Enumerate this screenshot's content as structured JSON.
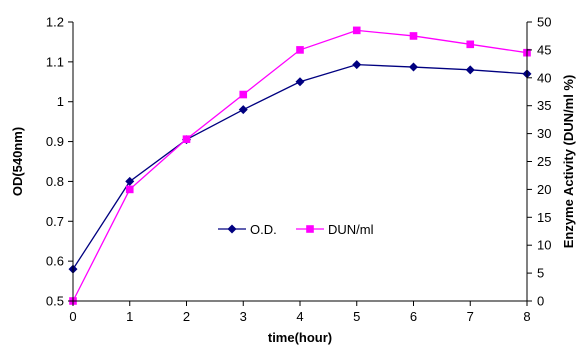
{
  "chart_data": {
    "type": "line",
    "title": "",
    "xlabel": "time(hour)",
    "ylabel_left": "OD(540nm)",
    "ylabel_right": "Enzyme Activity (DUN/ml %)",
    "x": [
      0,
      1,
      2,
      3,
      4,
      5,
      6,
      7,
      8
    ],
    "xlim": [
      0,
      8
    ],
    "x_ticks": [
      "0",
      "1",
      "2",
      "3",
      "4",
      "5",
      "6",
      "7",
      "8"
    ],
    "ylim_left": [
      0.5,
      1.2
    ],
    "y_ticks_left": [
      "0.5",
      "0.6",
      "0.7",
      "0.8",
      "0.9",
      "1",
      "1.1",
      "1.2"
    ],
    "ylim_right": [
      0,
      50
    ],
    "y_ticks_right": [
      "0",
      "5",
      "10",
      "15",
      "20",
      "25",
      "30",
      "35",
      "40",
      "45",
      "50"
    ],
    "grid": false,
    "legend_position": "center",
    "series": [
      {
        "name": "O.D.",
        "axis": "left",
        "marker": "diamond",
        "color": "#000080",
        "values": [
          0.58,
          0.8,
          0.905,
          0.98,
          1.05,
          1.093,
          1.087,
          1.08,
          1.07
        ]
      },
      {
        "name": "DUN/ml",
        "axis": "right",
        "marker": "square",
        "color": "#ff00ff",
        "values": [
          0,
          20,
          29,
          37,
          45,
          48.5,
          47.5,
          46,
          44.5
        ]
      }
    ]
  }
}
